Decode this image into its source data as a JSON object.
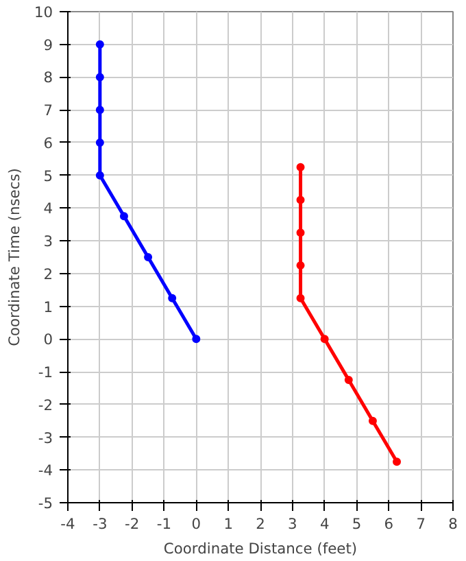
{
  "chart_data": {
    "type": "line",
    "xlabel": "Coordinate Distance (feet)",
    "ylabel": "Coordinate Time (nsecs)",
    "series": [
      {
        "color": "#0000ff",
        "x": [
          0,
          -0.75,
          -1.5,
          -2.25,
          -3,
          -3,
          -3,
          -3,
          -3
        ],
        "values": [
          0,
          1.25,
          2.5,
          3.75,
          5,
          6,
          7,
          8,
          9
        ]
      },
      {
        "color": "#ff0000",
        "x": [
          6.25,
          5.5,
          4.75,
          4,
          3.25,
          3.25,
          3.25,
          3.25,
          3.25
        ],
        "values": [
          -3.75,
          -2.5,
          -1.25,
          0,
          1.25,
          2.25,
          3.25,
          4.25,
          5.25
        ]
      }
    ],
    "xlim": [
      -4,
      8
    ],
    "ylim": [
      -5,
      10
    ],
    "xticks": [
      -4,
      -3,
      -2,
      -1,
      0,
      1,
      2,
      3,
      4,
      5,
      6,
      7,
      8
    ],
    "yticks": [
      -5,
      -4,
      -3,
      -2,
      -1,
      0,
      1,
      2,
      3,
      4,
      5,
      6,
      7,
      8,
      9,
      10
    ],
    "grid": true,
    "marker": "circle",
    "line_style": "solid"
  }
}
